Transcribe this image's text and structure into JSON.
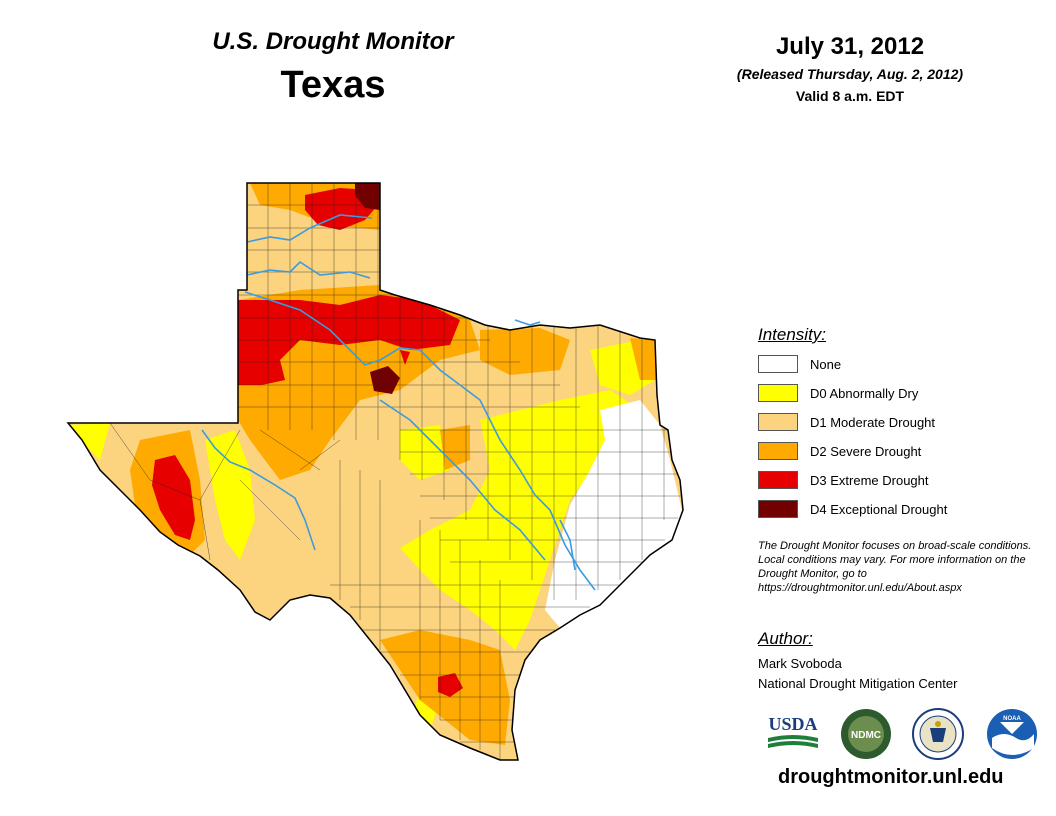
{
  "header": {
    "title": "U.S. Drought Monitor",
    "state": "Texas",
    "date": "July 31, 2012",
    "released": "(Released Thursday, Aug. 2, 2012)",
    "valid": "Valid 8 a.m. EDT"
  },
  "legend": {
    "title": "Intensity:",
    "items": [
      {
        "label": "None",
        "color": "#ffffff"
      },
      {
        "label": "D0 Abnormally Dry",
        "color": "#ffff00"
      },
      {
        "label": "D1 Moderate Drought",
        "color": "#fcd37f"
      },
      {
        "label": "D2 Severe Drought",
        "color": "#ffaa00"
      },
      {
        "label": "D3 Extreme Drought",
        "color": "#e60000"
      },
      {
        "label": "D4 Exceptional Drought",
        "color": "#730000"
      }
    ]
  },
  "note": "The Drought Monitor focuses on broad-scale conditions. Local conditions may vary. For more information on the Drought Monitor, go to https://droughtmonitor.unl.edu/About.aspx",
  "author": {
    "title": "Author:",
    "name": "Mark Svoboda",
    "organization": "National Drought Mitigation Center"
  },
  "logos": [
    {
      "name": "usda-logo",
      "text": "USDA"
    },
    {
      "name": "ndmc-logo",
      "text": "NDMC"
    },
    {
      "name": "commerce-seal"
    },
    {
      "name": "noaa-logo",
      "text": "NOAA"
    }
  ],
  "footer_url": "droughtmonitor.unl.edu"
}
